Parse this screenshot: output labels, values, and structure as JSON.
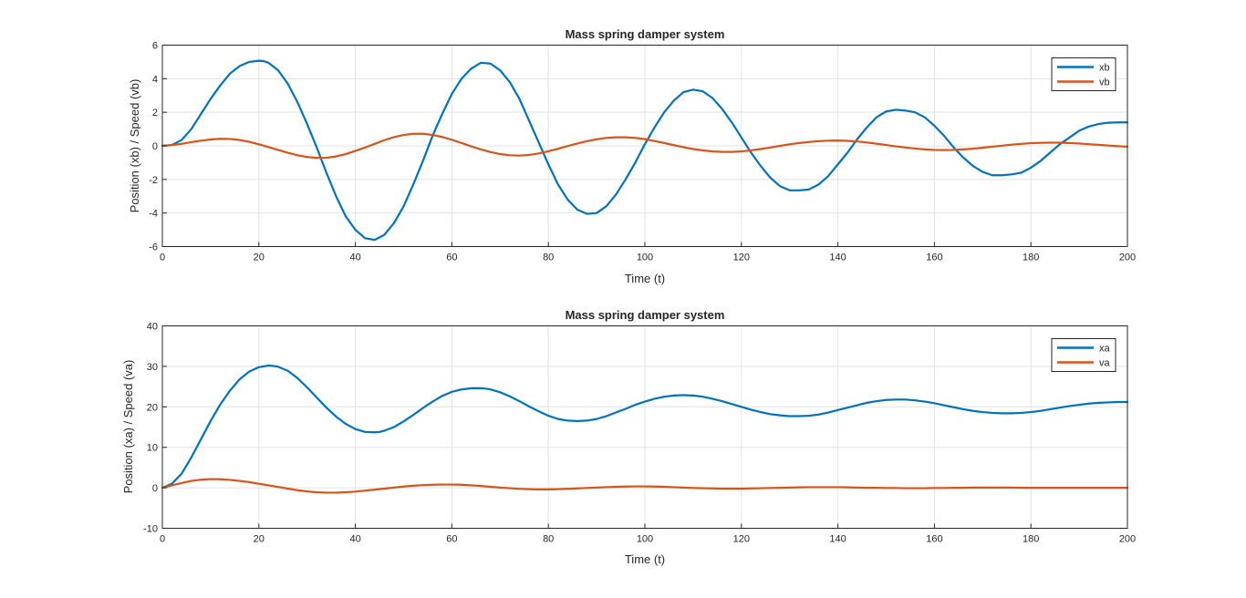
{
  "chart_data": [
    {
      "type": "line",
      "title": "Mass spring damper system",
      "xlabel": "Time (t)",
      "ylabel": "Position (xb) / Speed (vb)",
      "xlim": [
        0,
        200
      ],
      "ylim": [
        -6,
        6
      ],
      "xticks": [
        0,
        20,
        40,
        60,
        80,
        100,
        120,
        140,
        160,
        180,
        200
      ],
      "yticks": [
        -6,
        -4,
        -2,
        0,
        2,
        4,
        6
      ],
      "grid": true,
      "legend_position": "top-right",
      "colors": {
        "xb": "#0072bd",
        "vb": "#d95319"
      },
      "series": [
        {
          "name": "xb",
          "color": "#0072bd",
          "x": [
            0,
            2,
            4,
            6,
            8,
            10,
            12,
            14,
            16,
            18,
            20,
            21,
            22,
            24,
            26,
            28,
            30,
            32,
            34,
            36,
            38,
            40,
            42,
            44,
            46,
            48,
            50,
            52,
            54,
            56,
            58,
            60,
            62,
            64,
            66,
            68,
            70,
            72,
            74,
            76,
            78,
            80,
            82,
            84,
            86,
            88,
            90,
            92,
            94,
            96,
            98,
            100,
            102,
            104,
            106,
            108,
            110,
            112,
            114,
            116,
            118,
            120,
            122,
            124,
            126,
            128,
            130,
            132,
            134,
            136,
            138,
            140,
            142,
            144,
            146,
            148,
            150,
            152,
            154,
            156,
            158,
            160,
            162,
            164,
            166,
            168,
            170,
            172,
            174,
            176,
            178,
            180,
            182,
            184,
            186,
            188,
            190,
            192,
            194,
            196,
            198,
            200
          ],
          "values": [
            0,
            0.05,
            0.35,
            1.0,
            1.9,
            2.8,
            3.6,
            4.3,
            4.75,
            5.0,
            5.07,
            5.05,
            4.95,
            4.5,
            3.7,
            2.6,
            1.3,
            -0.1,
            -1.6,
            -3.0,
            -4.2,
            -5.0,
            -5.5,
            -5.6,
            -5.3,
            -4.6,
            -3.6,
            -2.3,
            -0.9,
            0.6,
            1.9,
            3.1,
            4.0,
            4.6,
            4.95,
            4.9,
            4.5,
            3.8,
            2.8,
            1.5,
            0.2,
            -1.1,
            -2.3,
            -3.2,
            -3.8,
            -4.05,
            -4.0,
            -3.6,
            -2.9,
            -2.0,
            -1.0,
            0.1,
            1.1,
            2.0,
            2.7,
            3.2,
            3.35,
            3.25,
            2.85,
            2.2,
            1.4,
            0.5,
            -0.4,
            -1.2,
            -1.9,
            -2.4,
            -2.65,
            -2.65,
            -2.6,
            -2.3,
            -1.8,
            -1.1,
            -0.4,
            0.4,
            1.1,
            1.7,
            2.05,
            2.15,
            2.1,
            2.0,
            1.7,
            1.2,
            0.6,
            -0.1,
            -0.7,
            -1.2,
            -1.55,
            -1.75,
            -1.75,
            -1.7,
            -1.6,
            -1.3,
            -0.9,
            -0.4,
            0.1,
            0.5,
            0.9,
            1.15,
            1.3,
            1.38,
            1.4,
            1.4
          ]
        },
        {
          "name": "vb",
          "color": "#d95319",
          "x": [
            0,
            2,
            4,
            6,
            8,
            10,
            12,
            14,
            16,
            18,
            20,
            22,
            24,
            26,
            28,
            30,
            32,
            34,
            36,
            38,
            40,
            42,
            44,
            46,
            48,
            50,
            52,
            54,
            56,
            58,
            60,
            62,
            64,
            66,
            68,
            70,
            72,
            74,
            76,
            78,
            80,
            82,
            84,
            86,
            88,
            90,
            92,
            94,
            96,
            98,
            100,
            102,
            104,
            106,
            108,
            110,
            112,
            114,
            116,
            118,
            120,
            122,
            124,
            126,
            128,
            130,
            132,
            134,
            136,
            138,
            140,
            142,
            144,
            146,
            148,
            150,
            152,
            154,
            156,
            158,
            160,
            162,
            164,
            166,
            168,
            170,
            172,
            174,
            176,
            178,
            180,
            182,
            184,
            186,
            188,
            190,
            192,
            194,
            196,
            198,
            200
          ],
          "values": [
            0,
            0.05,
            0.12,
            0.22,
            0.31,
            0.38,
            0.42,
            0.41,
            0.35,
            0.24,
            0.09,
            -0.07,
            -0.24,
            -0.41,
            -0.56,
            -0.66,
            -0.72,
            -0.71,
            -0.63,
            -0.49,
            -0.3,
            -0.1,
            0.12,
            0.34,
            0.52,
            0.65,
            0.72,
            0.72,
            0.65,
            0.53,
            0.36,
            0.17,
            -0.03,
            -0.21,
            -0.37,
            -0.49,
            -0.56,
            -0.58,
            -0.54,
            -0.45,
            -0.32,
            -0.17,
            -0.01,
            0.14,
            0.28,
            0.39,
            0.47,
            0.51,
            0.51,
            0.47,
            0.4,
            0.29,
            0.17,
            0.04,
            -0.08,
            -0.19,
            -0.27,
            -0.33,
            -0.36,
            -0.36,
            -0.33,
            -0.27,
            -0.19,
            -0.1,
            0.0,
            0.09,
            0.17,
            0.23,
            0.28,
            0.31,
            0.32,
            0.3,
            0.26,
            0.2,
            0.13,
            0.05,
            -0.03,
            -0.1,
            -0.16,
            -0.21,
            -0.24,
            -0.25,
            -0.24,
            -0.21,
            -0.17,
            -0.11,
            -0.05,
            0.01,
            0.07,
            0.12,
            0.16,
            0.18,
            0.19,
            0.19,
            0.17,
            0.14,
            0.1,
            0.06,
            0.02,
            -0.02,
            -0.05
          ]
        }
      ]
    },
    {
      "type": "line",
      "title": "Mass spring damper system",
      "xlabel": "Time (t)",
      "ylabel": "Position (xa) / Speed (va)",
      "xlim": [
        0,
        200
      ],
      "ylim": [
        -10,
        40
      ],
      "xticks": [
        0,
        20,
        40,
        60,
        80,
        100,
        120,
        140,
        160,
        180,
        200
      ],
      "yticks": [
        -10,
        0,
        10,
        20,
        30,
        40
      ],
      "grid": true,
      "legend_position": "top-right",
      "colors": {
        "xa": "#0072bd",
        "va": "#d95319"
      },
      "series": [
        {
          "name": "xa",
          "color": "#0072bd",
          "x": [
            0,
            2,
            4,
            6,
            8,
            10,
            12,
            14,
            16,
            18,
            20,
            22,
            23,
            24,
            26,
            28,
            30,
            32,
            34,
            36,
            38,
            40,
            42,
            44,
            45,
            46,
            48,
            50,
            52,
            54,
            56,
            58,
            60,
            62,
            64,
            66,
            67,
            68,
            70,
            72,
            74,
            76,
            78,
            80,
            82,
            84,
            86,
            88,
            90,
            92,
            94,
            96,
            98,
            100,
            102,
            104,
            106,
            108,
            110,
            112,
            114,
            116,
            118,
            120,
            122,
            124,
            126,
            128,
            130,
            132,
            134,
            136,
            138,
            140,
            142,
            144,
            146,
            148,
            150,
            152,
            154,
            156,
            158,
            160,
            162,
            164,
            166,
            168,
            170,
            172,
            174,
            176,
            178,
            180,
            182,
            184,
            186,
            188,
            190,
            192,
            194,
            196,
            198,
            200
          ],
          "values": [
            0,
            1.0,
            3.5,
            7.5,
            12.0,
            16.5,
            20.6,
            24.0,
            26.8,
            28.7,
            29.8,
            30.2,
            30.1,
            29.9,
            28.9,
            27.1,
            24.8,
            22.3,
            19.8,
            17.6,
            15.8,
            14.5,
            13.8,
            13.7,
            13.8,
            14.1,
            15.0,
            16.4,
            18.0,
            19.7,
            21.3,
            22.7,
            23.7,
            24.3,
            24.6,
            24.6,
            24.5,
            24.3,
            23.6,
            22.6,
            21.4,
            20.1,
            18.9,
            17.8,
            17.0,
            16.6,
            16.5,
            16.6,
            17.0,
            17.7,
            18.6,
            19.5,
            20.5,
            21.3,
            22.0,
            22.5,
            22.8,
            22.9,
            22.8,
            22.5,
            22.0,
            21.4,
            20.7,
            20.0,
            19.3,
            18.7,
            18.2,
            17.9,
            17.7,
            17.7,
            17.8,
            18.1,
            18.6,
            19.2,
            19.8,
            20.4,
            21.0,
            21.4,
            21.7,
            21.8,
            21.8,
            21.6,
            21.3,
            20.9,
            20.4,
            19.9,
            19.4,
            19.0,
            18.7,
            18.5,
            18.4,
            18.4,
            18.5,
            18.7,
            19.0,
            19.4,
            19.8,
            20.2,
            20.5,
            20.8,
            21.0,
            21.1,
            21.2,
            21.2
          ]
        },
        {
          "name": "va",
          "color": "#d95319",
          "x": [
            0,
            2,
            4,
            6,
            8,
            10,
            12,
            14,
            16,
            18,
            20,
            22,
            24,
            26,
            28,
            30,
            32,
            34,
            36,
            38,
            40,
            42,
            44,
            46,
            48,
            50,
            52,
            54,
            56,
            58,
            60,
            62,
            64,
            66,
            68,
            70,
            72,
            74,
            76,
            78,
            80,
            82,
            84,
            86,
            88,
            90,
            92,
            94,
            96,
            98,
            100,
            102,
            104,
            106,
            108,
            110,
            112,
            114,
            116,
            118,
            120,
            122,
            124,
            126,
            128,
            130,
            132,
            134,
            136,
            138,
            140,
            142,
            144,
            146,
            148,
            150,
            152,
            154,
            156,
            158,
            160,
            162,
            164,
            166,
            168,
            170,
            172,
            174,
            176,
            178,
            180,
            182,
            184,
            186,
            188,
            190,
            192,
            194,
            196,
            198,
            200
          ],
          "values": [
            0,
            0.6,
            1.2,
            1.7,
            2.0,
            2.15,
            2.1,
            1.95,
            1.7,
            1.4,
            1.0,
            0.6,
            0.2,
            -0.2,
            -0.6,
            -0.9,
            -1.1,
            -1.2,
            -1.2,
            -1.1,
            -0.95,
            -0.7,
            -0.45,
            -0.2,
            0.05,
            0.3,
            0.5,
            0.65,
            0.75,
            0.8,
            0.8,
            0.75,
            0.6,
            0.45,
            0.25,
            0.05,
            -0.1,
            -0.25,
            -0.35,
            -0.4,
            -0.4,
            -0.35,
            -0.25,
            -0.15,
            -0.05,
            0.05,
            0.15,
            0.25,
            0.3,
            0.35,
            0.35,
            0.3,
            0.25,
            0.15,
            0.05,
            -0.05,
            -0.1,
            -0.15,
            -0.2,
            -0.2,
            -0.2,
            -0.15,
            -0.1,
            -0.05,
            0.0,
            0.05,
            0.1,
            0.15,
            0.15,
            0.15,
            0.15,
            0.1,
            0.05,
            0.0,
            0.0,
            -0.05,
            -0.05,
            -0.1,
            -0.1,
            -0.1,
            -0.05,
            -0.05,
            0.0,
            0.0,
            0.05,
            0.05,
            0.05,
            0.05,
            0.05,
            0.0,
            0.0,
            0.0,
            0.0,
            0.0,
            0.0,
            0.0,
            0.0,
            0.0,
            0.0,
            0.0,
            0.0
          ]
        }
      ]
    }
  ]
}
